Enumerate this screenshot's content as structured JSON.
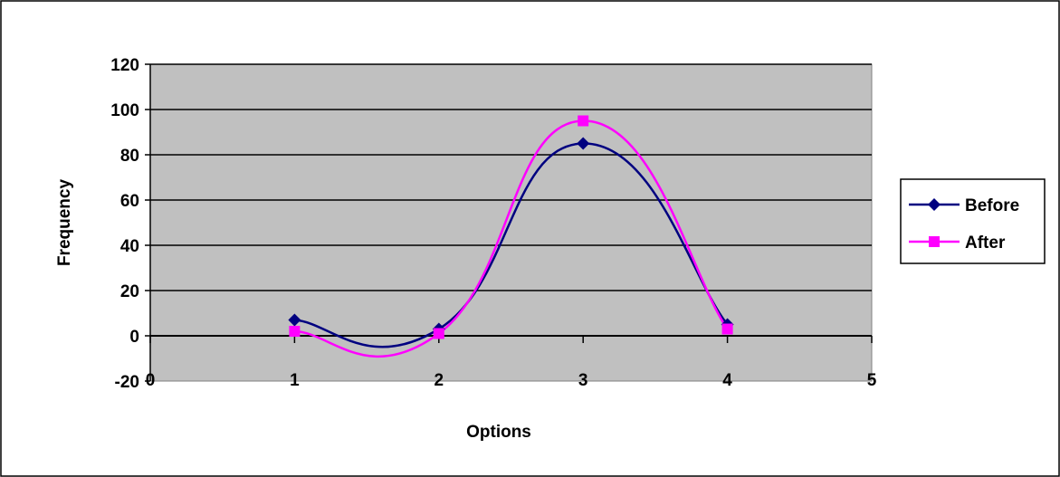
{
  "chart_data": {
    "type": "line",
    "title": "",
    "xlabel": "Options",
    "ylabel": "Frequency",
    "xlim": [
      0,
      5
    ],
    "ylim": [
      -20,
      120
    ],
    "x_ticks": [
      "0",
      "1",
      "2",
      "3",
      "4",
      "5"
    ],
    "y_ticks": [
      "120",
      "100",
      "80",
      "60",
      "40",
      "20",
      "0",
      "-20"
    ],
    "grid": true,
    "smoothed": true,
    "legend_position": "right",
    "plot_background": "#c0c0c0",
    "x": [
      1,
      2,
      3,
      4
    ],
    "series": [
      {
        "name": "Before",
        "values": [
          7,
          3,
          85,
          5
        ],
        "color": "#000080",
        "marker": "diamond"
      },
      {
        "name": "After",
        "values": [
          2,
          1,
          95,
          3
        ],
        "color": "#ff00ff",
        "marker": "square"
      }
    ]
  }
}
